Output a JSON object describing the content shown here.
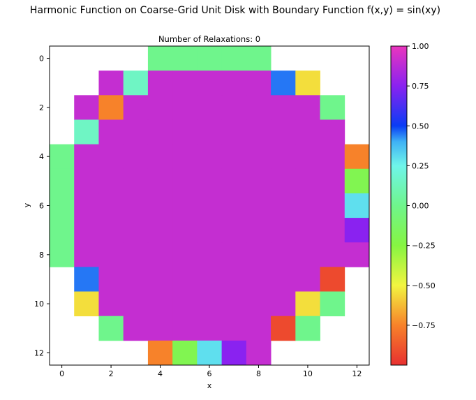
{
  "chart_data": {
    "type": "heatmap",
    "suptitle": "Harmonic Function on Coarse-Grid Unit Disk with Boundary Function f(x,y) = sin(xy)",
    "title": "Number of Relaxations: 0",
    "xlabel": "x",
    "ylabel": "y",
    "xlim": [
      -0.5,
      12.5
    ],
    "ylim_inverted": [
      -0.5,
      12.5
    ],
    "xticks": [
      "0",
      "2",
      "4",
      "6",
      "8",
      "10",
      "12"
    ],
    "yticks": [
      "0",
      "2",
      "4",
      "6",
      "8",
      "10",
      "12"
    ],
    "colormap": "hsv-like (red → yellow → green → cyan → blue → magenta)",
    "colorbar": {
      "min": -1.0,
      "max": 1.0,
      "ticks": [
        1.0,
        0.75,
        0.5,
        0.25,
        0.0,
        -0.25,
        -0.5,
        -0.75
      ],
      "tick_labels": [
        "1.00",
        "0.75",
        "0.50",
        "0.25",
        "0.00",
        "−0.25",
        "−0.50",
        "−0.75"
      ]
    },
    "grid_note": "rows are y = 0..12 (top to bottom), columns are x = 0..12; null = outside disk (white)",
    "grid": [
      [
        null,
        null,
        null,
        null,
        0.0,
        0.0,
        0.0,
        0.0,
        0.0,
        null,
        null,
        null,
        null
      ],
      [
        null,
        null,
        0.9,
        0.15,
        0.9,
        0.9,
        0.9,
        0.9,
        0.9,
        0.45,
        -0.55,
        null,
        null
      ],
      [
        null,
        0.9,
        -0.75,
        0.9,
        0.9,
        0.9,
        0.9,
        0.9,
        0.9,
        0.9,
        0.9,
        0.0,
        null
      ],
      [
        null,
        0.15,
        0.9,
        0.9,
        0.9,
        0.9,
        0.9,
        0.9,
        0.9,
        0.9,
        0.9,
        0.9,
        null
      ],
      [
        0.0,
        0.9,
        0.9,
        0.9,
        0.9,
        0.9,
        0.9,
        0.9,
        0.9,
        0.9,
        0.9,
        0.9,
        -0.75
      ],
      [
        0.0,
        0.9,
        0.9,
        0.9,
        0.9,
        0.9,
        0.9,
        0.9,
        0.9,
        0.9,
        0.9,
        0.9,
        -0.2
      ],
      [
        0.0,
        0.9,
        0.9,
        0.9,
        0.9,
        0.9,
        0.9,
        0.9,
        0.9,
        0.9,
        0.9,
        0.9,
        0.3
      ],
      [
        0.0,
        0.9,
        0.9,
        0.9,
        0.9,
        0.9,
        0.9,
        0.9,
        0.9,
        0.9,
        0.9,
        0.9,
        0.75
      ],
      [
        0.0,
        0.9,
        0.9,
        0.9,
        0.9,
        0.9,
        0.9,
        0.9,
        0.9,
        0.9,
        0.9,
        0.9,
        0.9
      ],
      [
        null,
        0.45,
        0.9,
        0.9,
        0.9,
        0.9,
        0.9,
        0.9,
        0.9,
        0.9,
        0.9,
        -0.92,
        null
      ],
      [
        null,
        -0.55,
        0.9,
        0.9,
        0.9,
        0.9,
        0.9,
        0.9,
        0.9,
        0.9,
        -0.55,
        0.0,
        null
      ],
      [
        null,
        null,
        0.0,
        0.9,
        0.9,
        0.9,
        0.9,
        0.9,
        0.9,
        -0.92,
        0.0,
        null,
        null
      ],
      [
        null,
        null,
        null,
        null,
        -0.75,
        -0.2,
        0.3,
        0.75,
        0.9,
        null,
        null,
        null,
        null
      ]
    ]
  }
}
